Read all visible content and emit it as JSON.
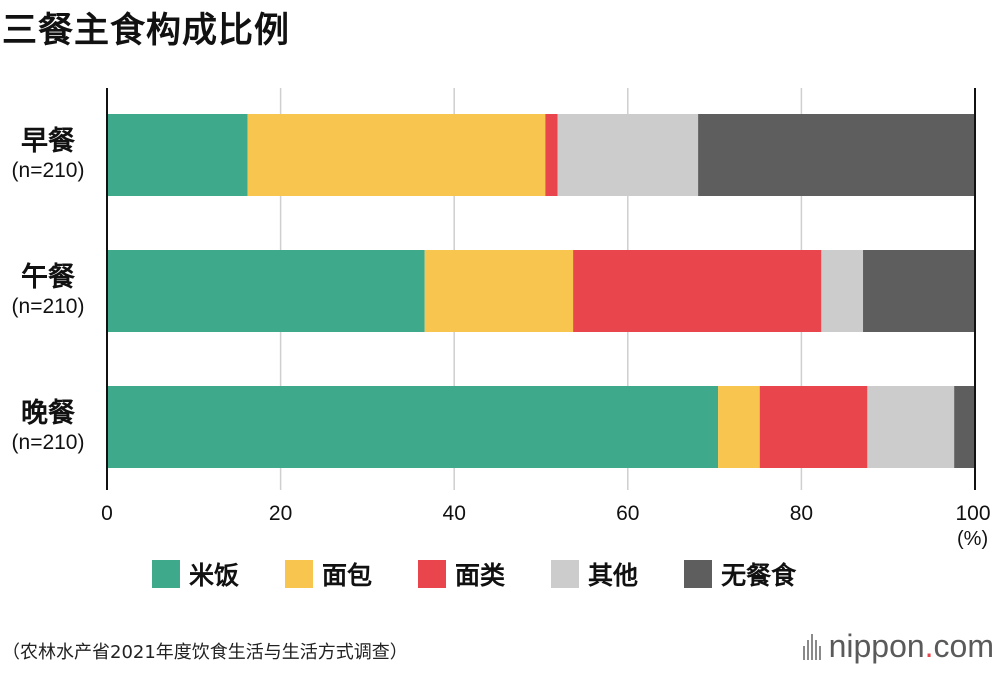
{
  "page": {
    "title": "三餐主食构成比例"
  },
  "chart_data": {
    "type": "bar",
    "orientation": "horizontal",
    "stacked": true,
    "title": "三餐主食构成比例",
    "categories": [
      {
        "name": "早餐",
        "n": "(n=210)"
      },
      {
        "name": "午餐",
        "n": "(n=210)"
      },
      {
        "name": "晚餐",
        "n": "(n=210)"
      }
    ],
    "series": [
      {
        "name": "米饭",
        "color": "#3fa98b",
        "values": [
          16.2,
          36.6,
          70.4
        ]
      },
      {
        "name": "面包",
        "color": "#f8c54e",
        "values": [
          34.3,
          17.1,
          4.8
        ]
      },
      {
        "name": "面类",
        "color": "#e8464c",
        "values": [
          1.4,
          28.6,
          12.4
        ]
      },
      {
        "name": "其他",
        "color": "#cccccc",
        "values": [
          16.2,
          4.8,
          10.0
        ]
      },
      {
        "name": "无餐食",
        "color": "#5e5e5e",
        "values": [
          31.9,
          12.9,
          2.4
        ]
      }
    ],
    "xlim": [
      0,
      100
    ],
    "xticks": [
      "0",
      "20",
      "40",
      "60",
      "80",
      "100"
    ],
    "xunit": "(%)",
    "grid": true,
    "legend_position": "bottom"
  },
  "footer": {
    "source": "（农林水产省2021年度饮食生活与生活方式调查）",
    "brand_main": "nippon",
    "brand_dot": ".",
    "brand_suffix": "com"
  }
}
